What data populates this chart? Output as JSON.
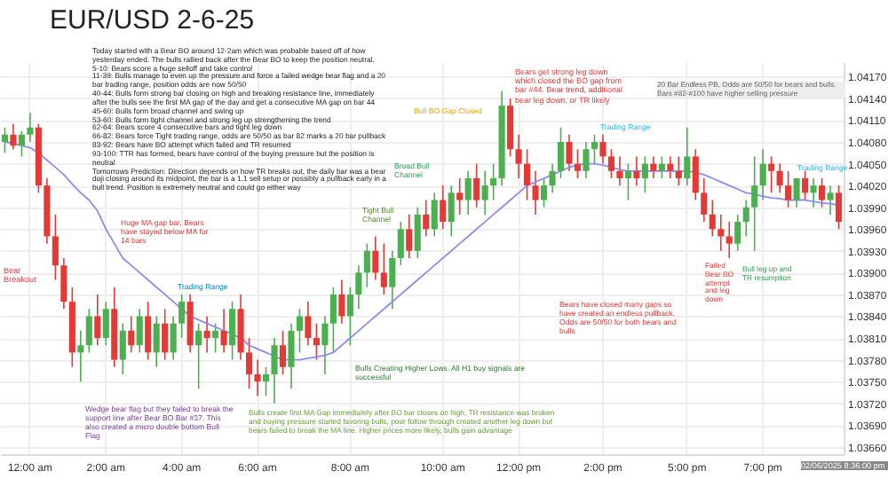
{
  "chart_data": {
    "type": "candlestick",
    "title": "EUR/USD 2-6-25",
    "categories": [
      null,
      null,
      null,
      "12:00 am",
      null,
      null,
      null,
      null,
      null,
      null,
      null,
      null,
      "2:00 am",
      null,
      null,
      null,
      null,
      null,
      null,
      null,
      null,
      "4:00 am",
      null,
      null,
      null,
      null,
      null,
      null,
      null,
      null,
      "6:00 am",
      null,
      null,
      null,
      null,
      null,
      null,
      null,
      null,
      null,
      null,
      "8:00 am",
      null,
      null,
      null,
      null,
      null,
      null,
      null,
      null,
      null,
      null,
      "10:00 am",
      null,
      null,
      null,
      null,
      null,
      null,
      null,
      null,
      "12:00 pm",
      null,
      null,
      null,
      null,
      null,
      null,
      null,
      null,
      null,
      "2:00 pm",
      null,
      null,
      null,
      null,
      null,
      null,
      null,
      null,
      null,
      "5:00 pm",
      null,
      null,
      null,
      null,
      null,
      null,
      null,
      null,
      "7:00 pm",
      null,
      null,
      null,
      null,
      null,
      null,
      null,
      null,
      null
    ],
    "ohlc": [
      [
        1.0408,
        1.041,
        1.04065,
        1.0409
      ],
      [
        1.0409,
        1.04105,
        1.0407,
        1.04075
      ],
      [
        1.04075,
        1.04095,
        1.0406,
        1.0409
      ],
      [
        1.0409,
        1.0412,
        1.0408,
        1.041
      ],
      [
        1.041,
        1.04105,
        1.0401,
        1.0402
      ],
      [
        1.0402,
        1.0403,
        1.0394,
        1.0395
      ],
      [
        1.0395,
        1.0398,
        1.0389,
        1.0391
      ],
      [
        1.0391,
        1.0392,
        1.0385,
        1.0386
      ],
      [
        1.0386,
        1.0388,
        1.0377,
        1.0379
      ],
      [
        1.0379,
        1.0382,
        1.0375,
        1.038
      ],
      [
        1.038,
        1.0385,
        1.0379,
        1.0384
      ],
      [
        1.0384,
        1.0387,
        1.038,
        1.0381
      ],
      [
        1.0381,
        1.0386,
        1.038,
        1.0385
      ],
      [
        1.0385,
        1.0388,
        1.0377,
        1.0378
      ],
      [
        1.0378,
        1.0383,
        1.0376,
        1.0382
      ],
      [
        1.0382,
        1.0384,
        1.0379,
        1.038
      ],
      [
        1.038,
        1.0385,
        1.0379,
        1.0384
      ],
      [
        1.0384,
        1.0386,
        1.0378,
        1.0379
      ],
      [
        1.0379,
        1.0384,
        1.0377,
        1.0383
      ],
      [
        1.0383,
        1.0385,
        1.0378,
        1.0379
      ],
      [
        1.0379,
        1.0384,
        1.0378,
        1.0383
      ],
      [
        1.0383,
        1.0387,
        1.0381,
        1.0386
      ],
      [
        1.0386,
        1.0387,
        1.0379,
        1.038
      ],
      [
        1.038,
        1.0383,
        1.0374,
        1.0382
      ],
      [
        1.0382,
        1.0384,
        1.0379,
        1.0381
      ],
      [
        1.0381,
        1.0383,
        1.0379,
        1.0382
      ],
      [
        1.0382,
        1.0385,
        1.0379,
        1.038
      ],
      [
        1.038,
        1.0386,
        1.0378,
        1.0385
      ],
      [
        1.0385,
        1.0387,
        1.0378,
        1.0379
      ],
      [
        1.0379,
        1.0381,
        1.0374,
        1.0376
      ],
      [
        1.0376,
        1.0378,
        1.0373,
        1.0375
      ],
      [
        1.0375,
        1.0377,
        1.0373,
        1.0376
      ],
      [
        1.0376,
        1.0381,
        1.0372,
        1.038
      ],
      [
        1.038,
        1.0382,
        1.0376,
        1.0377
      ],
      [
        1.0377,
        1.0383,
        1.0374,
        1.0382
      ],
      [
        1.0382,
        1.0385,
        1.0379,
        1.0384
      ],
      [
        1.0384,
        1.0386,
        1.038,
        1.0381
      ],
      [
        1.0381,
        1.0383,
        1.0378,
        1.038
      ],
      [
        1.038,
        1.0384,
        1.0376,
        1.0383
      ],
      [
        1.0383,
        1.0388,
        1.0379,
        1.0387
      ],
      [
        1.0387,
        1.0389,
        1.0383,
        1.0384
      ],
      [
        1.0384,
        1.0388,
        1.038,
        1.0387
      ],
      [
        1.0387,
        1.0391,
        1.0385,
        1.039
      ],
      [
        1.039,
        1.0394,
        1.0388,
        1.0393
      ],
      [
        1.0393,
        1.0395,
        1.0389,
        1.039
      ],
      [
        1.039,
        1.0394,
        1.0387,
        1.0388
      ],
      [
        1.0388,
        1.0393,
        1.0385,
        1.0392
      ],
      [
        1.0392,
        1.0397,
        1.0391,
        1.0396
      ],
      [
        1.0396,
        1.0398,
        1.0392,
        1.0393
      ],
      [
        1.0393,
        1.0399,
        1.0392,
        1.0398
      ],
      [
        1.0398,
        1.04,
        1.0395,
        1.0396
      ],
      [
        1.0396,
        1.0401,
        1.0395,
        1.04
      ],
      [
        1.04,
        1.0402,
        1.0396,
        1.0397
      ],
      [
        1.0397,
        1.0402,
        1.0395,
        1.0401
      ],
      [
        1.0401,
        1.0403,
        1.0398,
        1.04
      ],
      [
        1.04,
        1.0404,
        1.0398,
        1.0403
      ],
      [
        1.0403,
        1.0405,
        1.0399,
        1.04
      ],
      [
        1.04,
        1.0404,
        1.0398,
        1.0402
      ],
      [
        1.0402,
        1.0405,
        1.04,
        1.0403
      ],
      [
        1.0403,
        1.0415,
        1.0402,
        1.0413
      ],
      [
        1.0413,
        1.0414,
        1.0406,
        1.0407
      ],
      [
        1.0407,
        1.0409,
        1.0403,
        1.0405
      ],
      [
        1.0405,
        1.0407,
        1.04,
        1.0402
      ],
      [
        1.0402,
        1.0404,
        1.0398,
        1.04
      ],
      [
        1.04,
        1.0403,
        1.0399,
        1.0402
      ],
      [
        1.0402,
        1.0405,
        1.0401,
        1.0404
      ],
      [
        1.0404,
        1.041,
        1.0403,
        1.0408
      ],
      [
        1.0408,
        1.0409,
        1.0404,
        1.0405
      ],
      [
        1.0405,
        1.0407,
        1.0403,
        1.0404
      ],
      [
        1.0404,
        1.0408,
        1.0403,
        1.0407
      ],
      [
        1.0407,
        1.0409,
        1.0405,
        1.0408
      ],
      [
        1.0408,
        1.0409,
        1.0405,
        1.0406
      ],
      [
        1.0406,
        1.0407,
        1.0403,
        1.0404
      ],
      [
        1.0404,
        1.0406,
        1.0402,
        1.0403
      ],
      [
        1.0403,
        1.0405,
        1.04,
        1.0404
      ],
      [
        1.0404,
        1.0406,
        1.0402,
        1.0403
      ],
      [
        1.0403,
        1.0406,
        1.0401,
        1.0405
      ],
      [
        1.0405,
        1.0406,
        1.0403,
        1.0404
      ],
      [
        1.0404,
        1.0406,
        1.0403,
        1.0405
      ],
      [
        1.0405,
        1.0406,
        1.0403,
        1.0404
      ],
      [
        1.0404,
        1.0406,
        1.0402,
        1.0403
      ],
      [
        1.0403,
        1.041,
        1.0402,
        1.0406
      ],
      [
        1.0406,
        1.0407,
        1.04,
        1.0401
      ],
      [
        1.0401,
        1.0403,
        1.0397,
        1.0398
      ],
      [
        1.0398,
        1.04,
        1.0395,
        1.0396
      ],
      [
        1.0396,
        1.0398,
        1.0393,
        1.0395
      ],
      [
        1.0395,
        1.0397,
        1.0392,
        1.0394
      ],
      [
        1.0394,
        1.0398,
        1.0393,
        1.0397
      ],
      [
        1.0397,
        1.04,
        1.0395,
        1.0399
      ],
      [
        1.0399,
        1.0406,
        1.0393,
        1.0402
      ],
      [
        1.0402,
        1.0407,
        1.04,
        1.0405
      ],
      [
        1.0405,
        1.0406,
        1.0401,
        1.0404
      ],
      [
        1.0404,
        1.0405,
        1.0401,
        1.0402
      ],
      [
        1.0402,
        1.0404,
        1.0399,
        1.04
      ],
      [
        1.04,
        1.0403,
        1.0399,
        1.0403
      ],
      [
        1.0403,
        1.0404,
        1.04,
        1.0401
      ],
      [
        1.0401,
        1.0403,
        1.0399,
        1.0402
      ],
      [
        1.0402,
        1.0403,
        1.0399,
        1.04
      ],
      [
        1.04,
        1.0402,
        1.0398,
        1.0401
      ],
      [
        1.0401,
        1.0402,
        1.0396,
        1.0397
      ]
    ],
    "colors": [
      "#4caf50",
      "#e53935",
      "#4caf50",
      "#4caf50",
      "#e53935",
      "#e53935",
      "#e53935",
      "#e53935",
      "#e53935",
      "#4caf50",
      "#4caf50",
      "#e53935",
      "#4caf50",
      "#e53935",
      "#4caf50",
      "#e53935",
      "#4caf50",
      "#e53935",
      "#4caf50",
      "#e53935",
      "#4caf50",
      "#4caf50",
      "#e53935",
      "#4caf50",
      "#e53935",
      "#4caf50",
      "#e53935",
      "#4caf50",
      "#e53935",
      "#e53935",
      "#e53935",
      "#4caf50",
      "#4caf50",
      "#e53935",
      "#4caf50",
      "#4caf50",
      "#e53935",
      "#e53935",
      "#4caf50",
      "#4caf50",
      "#e53935",
      "#4caf50",
      "#4caf50",
      "#4caf50",
      "#e53935",
      "#e53935",
      "#4caf50",
      "#4caf50",
      "#e53935",
      "#4caf50",
      "#e53935",
      "#4caf50",
      "#e53935",
      "#4caf50",
      "#e53935",
      "#4caf50",
      "#e53935",
      "#4caf50",
      "#4caf50",
      "#4caf50",
      "#e53935",
      "#e53935",
      "#e53935",
      "#e53935",
      "#4caf50",
      "#4caf50",
      "#4caf50",
      "#e53935",
      "#e53935",
      "#4caf50",
      "#4caf50",
      "#e53935",
      "#e53935",
      "#e53935",
      "#4caf50",
      "#e53935",
      "#4caf50",
      "#e53935",
      "#4caf50",
      "#e53935",
      "#e53935",
      "#4caf50",
      "#e53935",
      "#e53935",
      "#e53935",
      "#e53935",
      "#e53935",
      "#4caf50",
      "#4caf50",
      "#4caf50",
      "#4caf50",
      "#e53935",
      "#e53935",
      "#e53935",
      "#4caf50",
      "#e53935",
      "#4caf50",
      "#e53935",
      "#4caf50",
      "#e53935"
    ],
    "series": [
      {
        "type": "line",
        "color": "#8c8cf0",
        "values": [
          1.0408,
          1.04078,
          1.04075,
          1.04072,
          1.04065,
          1.04055,
          1.04045,
          1.04035,
          1.04022,
          1.0401,
          1.04,
          1.03985,
          1.0396,
          1.0394,
          1.0392,
          1.0391,
          1.039,
          1.0389,
          1.0388,
          1.0387,
          1.0386,
          1.0385,
          1.0384,
          1.03835,
          1.0383,
          1.03825,
          1.0382,
          1.03815,
          1.0381,
          1.038,
          1.03795,
          1.0379,
          1.03785,
          1.0378,
          1.0378,
          1.0378,
          1.03782,
          1.03784,
          1.03786,
          1.0379,
          1.038,
          1.0381,
          1.0382,
          1.0383,
          1.0384,
          1.0385,
          1.0386,
          1.0387,
          1.0388,
          1.0389,
          1.039,
          1.0391,
          1.0392,
          1.0393,
          1.0394,
          1.0395,
          1.0396,
          1.0397,
          1.0398,
          1.0399,
          1.04,
          1.0401,
          1.0402,
          1.04025,
          1.0403,
          1.04035,
          1.0404,
          1.04045,
          1.04048,
          1.0405,
          1.0405,
          1.04048,
          1.04045,
          1.04042,
          1.0404,
          1.0404,
          1.0404,
          1.0404,
          1.0404,
          1.0404,
          1.0404,
          1.0404,
          1.04038,
          1.04035,
          1.0403,
          1.04025,
          1.0402,
          1.04015,
          1.0401,
          1.04008,
          1.04005,
          1.04003,
          1.04002,
          1.04,
          1.04,
          1.04,
          1.03998,
          1.03996,
          1.03995,
          1.03993
        ]
      }
    ],
    "ylim": [
      1.0365,
      1.0419
    ],
    "yticks": [
      {
        "value": 1.0417,
        "label": "1.04170"
      },
      {
        "value": 1.0414,
        "label": "1.04140"
      },
      {
        "value": 1.0411,
        "label": "1.04110"
      },
      {
        "value": 1.0408,
        "label": "1.04080"
      },
      {
        "value": 1.0405,
        "label": "1.04050"
      },
      {
        "value": 1.0402,
        "label": "1.04020"
      },
      {
        "value": 1.0399,
        "label": "1.03990"
      },
      {
        "value": 1.0396,
        "label": "1.03960"
      },
      {
        "value": 1.0393,
        "label": "1.03930"
      },
      {
        "value": 1.039,
        "label": "1.03900"
      },
      {
        "value": 1.0387,
        "label": "1.03870"
      },
      {
        "value": 1.0384,
        "label": "1.03840"
      },
      {
        "value": 1.0381,
        "label": "1.03810"
      },
      {
        "value": 1.0378,
        "label": "1.03780"
      },
      {
        "value": 1.0375,
        "label": "1.03750"
      },
      {
        "value": 1.0372,
        "label": "1.03720"
      },
      {
        "value": 1.0369,
        "label": "1.03690"
      },
      {
        "value": 1.0366,
        "label": "1.03660"
      }
    ],
    "grid": true,
    "annotations": [
      "Today started with a Bear BO around 12-2am which was probable based off of how yesterday ended. The bulls rallied back after the Bear BO to keep the position neutral.\n5-10: Bears score a huge selloff and take control\n11-39: Bulls manage to even up the pressure and force a failed wedge bear flag and a 20 bar trading range, position odds are now 50/50\n40-44: Bulls form strong bar closing on high and breaking resistance line, immediately after the bulls see the first MA gap of the day and get a consecutive MA gap on bar 44\n45-60: Bulls form broad channel and swing up\n53-60: Bulls form tight channel and strong leg up strengthening the trend\n62-64: Bears score 4 consecutive bars and tight leg down\n66-82: Bears force Tight trading range, odds are 50/50 as bar 82 marks a 20 bar pullback\n83-92: Bears have BO attempt which failed and TR resumed\n93-100: TTR has formed, bears have control of the buying pressure but the position is neutral\nTomorrows Prediction: Direction depends on how TR breaks out, the daily bar was a bear doji closing around its midpoint, the bar is a 1.1 sell setup or possibly a pullback early in a bull trend. Position is extremely neutral and could go either way",
      "Bear Breakout",
      "Huge MA gap bar, Bears have stayed below MA for 14 bars",
      "Trading Range",
      "Trading Range",
      "Trading Range",
      "Wedge bear flag but they failed to break the support line after Bear BO Bar #37. This also created a micro double bottom Bull Flag",
      "Bull BO Gap Closed",
      "Broad Bull Channel",
      "Tight Bull Channel",
      "Bears get strong leg down which closed the BO gap from bar #44. Bear trend, additional bear leg down, or TR likely",
      "20 Bar Endless PB, Odds are 50/50 for bears and bulls. Bars #82-#100 have higher selling pressure",
      "Bears have closed many gaps so have created an endless pullback. Odds are 50/50 for both bears and bulls",
      "Failed Bear BO attempt and leg down",
      "Bull leg up and TR resumption",
      "Bulls Creating Higher Lows. All H1 buy signals are successful",
      "Bulls create first MA Gap immediately after BO bar closes on high, TR resistance was broken and buying pressure started favoring bulls, poor follow through created another leg down but bears failed to break the MA line. Higher prices more likely, bulls gain advantage",
      "02/06/2025 8:36:00 pm"
    ]
  }
}
